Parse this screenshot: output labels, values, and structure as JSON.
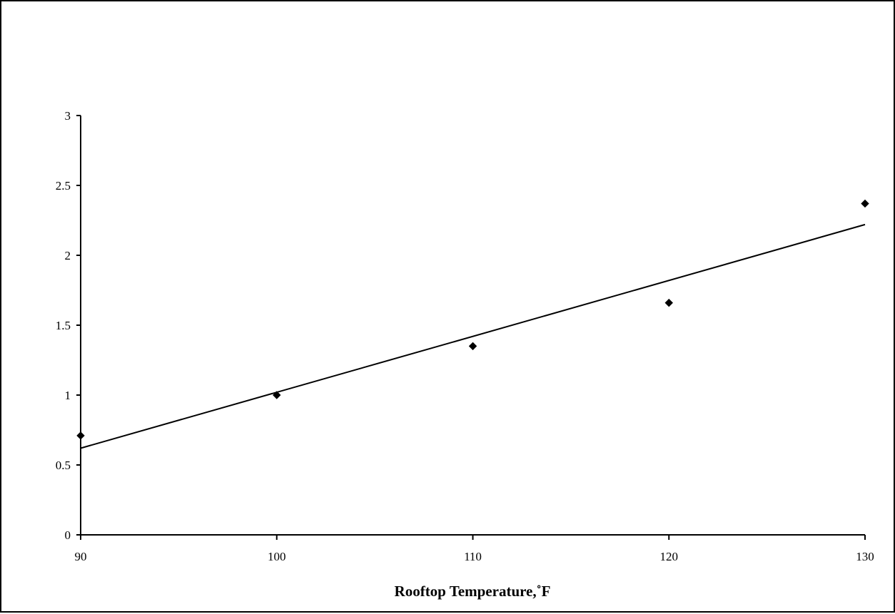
{
  "chart_data": {
    "type": "scatter",
    "title": "",
    "xlabel": "Rooftop Temperature,˚F",
    "ylabel": "",
    "xlim": [
      90,
      130
    ],
    "ylim": [
      0,
      3
    ],
    "x_ticks": [
      "90",
      "100",
      "110",
      "120",
      "130"
    ],
    "y_ticks": [
      "0",
      "0.5",
      "1",
      "1.5",
      "2",
      "2.5",
      "3"
    ],
    "grid": false,
    "legend": "none",
    "series": [
      {
        "x": [
          90,
          100,
          110,
          120,
          130
        ],
        "y": [
          0.71,
          1.0,
          1.35,
          1.66,
          2.37
        ],
        "marker": "diamond",
        "color": "#000000"
      }
    ],
    "trendline": {
      "type": "linear",
      "x": [
        90,
        130
      ],
      "y": [
        0.62,
        2.22
      ],
      "color": "#000000"
    }
  }
}
